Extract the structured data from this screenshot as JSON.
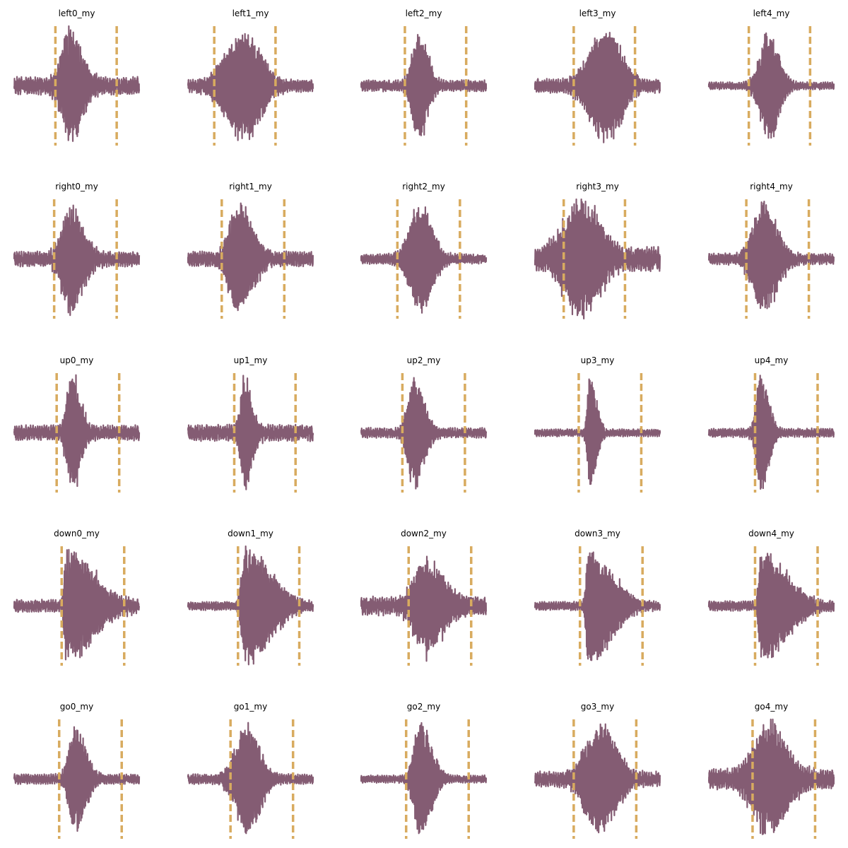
{
  "colors": {
    "waveform": "#845c73",
    "marker": "#d8ab5f",
    "background": "#ffffff"
  },
  "chart_data": {
    "type": "line",
    "grid": false,
    "axes_visible": false,
    "layout": {
      "rows": 5,
      "cols": 5
    },
    "xlim": [
      0,
      1
    ],
    "ylim": [
      -1,
      1
    ],
    "panels": [
      {
        "title": "left0_my",
        "markers": [
          0.33,
          0.82
        ],
        "envelope": {
          "peak": 0.45,
          "rise": 0.07,
          "decay": 0.09,
          "amp": 1.0,
          "noise": 0.14
        }
      },
      {
        "title": "left1_my",
        "markers": [
          0.21,
          0.7
        ],
        "envelope": {
          "peak": 0.45,
          "rise": 0.15,
          "decay": 0.13,
          "amp": 0.95,
          "noise": 0.1
        }
      },
      {
        "title": "left2_my",
        "markers": [
          0.35,
          0.84
        ],
        "envelope": {
          "peak": 0.46,
          "rise": 0.05,
          "decay": 0.07,
          "amp": 0.95,
          "noise": 0.09
        }
      },
      {
        "title": "left3_my",
        "markers": [
          0.31,
          0.8
        ],
        "envelope": {
          "peak": 0.57,
          "rise": 0.13,
          "decay": 0.12,
          "amp": 1.0,
          "noise": 0.11
        }
      },
      {
        "title": "left4_my",
        "markers": [
          0.32,
          0.81
        ],
        "envelope": {
          "peak": 0.48,
          "rise": 0.07,
          "decay": 0.08,
          "amp": 0.95,
          "noise": 0.06
        }
      },
      {
        "title": "right0_my",
        "markers": [
          0.32,
          0.82
        ],
        "envelope": {
          "peak": 0.45,
          "rise": 0.07,
          "decay": 0.1,
          "amp": 0.95,
          "noise": 0.12
        }
      },
      {
        "title": "right1_my",
        "markers": [
          0.27,
          0.77
        ],
        "envelope": {
          "peak": 0.4,
          "rise": 0.07,
          "decay": 0.11,
          "amp": 0.95,
          "noise": 0.12
        }
      },
      {
        "title": "right2_my",
        "markers": [
          0.29,
          0.79
        ],
        "envelope": {
          "peak": 0.48,
          "rise": 0.09,
          "decay": 0.09,
          "amp": 0.95,
          "noise": 0.08
        }
      },
      {
        "title": "right3_my",
        "markers": [
          0.23,
          0.72
        ],
        "envelope": {
          "peak": 0.38,
          "rise": 0.14,
          "decay": 0.14,
          "amp": 1.0,
          "noise": 0.2
        }
      },
      {
        "title": "right4_my",
        "markers": [
          0.3,
          0.8
        ],
        "envelope": {
          "peak": 0.43,
          "rise": 0.08,
          "decay": 0.11,
          "amp": 0.95,
          "noise": 0.09
        }
      },
      {
        "title": "up0_my",
        "markers": [
          0.34,
          0.84
        ],
        "envelope": {
          "peak": 0.46,
          "rise": 0.04,
          "decay": 0.07,
          "amp": 1.0,
          "noise": 0.12
        }
      },
      {
        "title": "up1_my",
        "markers": [
          0.37,
          0.86
        ],
        "envelope": {
          "peak": 0.45,
          "rise": 0.03,
          "decay": 0.06,
          "amp": 0.95,
          "noise": 0.13
        }
      },
      {
        "title": "up2_my",
        "markers": [
          0.33,
          0.83
        ],
        "envelope": {
          "peak": 0.42,
          "rise": 0.05,
          "decay": 0.08,
          "amp": 0.95,
          "noise": 0.08
        }
      },
      {
        "title": "up3_my",
        "markers": [
          0.35,
          0.85
        ],
        "envelope": {
          "peak": 0.44,
          "rise": 0.02,
          "decay": 0.05,
          "amp": 1.0,
          "noise": 0.06
        }
      },
      {
        "title": "up4_my",
        "markers": [
          0.37,
          0.87
        ],
        "envelope": {
          "peak": 0.42,
          "rise": 0.04,
          "decay": 0.06,
          "amp": 1.0,
          "noise": 0.07
        }
      },
      {
        "title": "down0_my",
        "markers": [
          0.38,
          0.88
        ],
        "envelope": {
          "peak": 0.42,
          "rise": 0.02,
          "decay": 0.22,
          "amp": 0.95,
          "noise": 0.1
        }
      },
      {
        "title": "down1_my",
        "markers": [
          0.4,
          0.89
        ],
        "envelope": {
          "peak": 0.46,
          "rise": 0.03,
          "decay": 0.2,
          "amp": 1.0,
          "noise": 0.07
        }
      },
      {
        "title": "down2_my",
        "markers": [
          0.38,
          0.88
        ],
        "envelope": {
          "peak": 0.5,
          "rise": 0.08,
          "decay": 0.15,
          "amp": 0.8,
          "noise": 0.15
        }
      },
      {
        "title": "down3_my",
        "markers": [
          0.36,
          0.86
        ],
        "envelope": {
          "peak": 0.43,
          "rise": 0.02,
          "decay": 0.18,
          "amp": 1.0,
          "noise": 0.07
        }
      },
      {
        "title": "down4_my",
        "markers": [
          0.37,
          0.87
        ],
        "envelope": {
          "peak": 0.42,
          "rise": 0.02,
          "decay": 0.2,
          "amp": 0.95,
          "noise": 0.08
        }
      },
      {
        "title": "go0_my",
        "markers": [
          0.36,
          0.86
        ],
        "envelope": {
          "peak": 0.49,
          "rise": 0.05,
          "decay": 0.08,
          "amp": 0.95,
          "noise": 0.08
        }
      },
      {
        "title": "go1_my",
        "markers": [
          0.34,
          0.84
        ],
        "envelope": {
          "peak": 0.47,
          "rise": 0.09,
          "decay": 0.1,
          "amp": 0.95,
          "noise": 0.08
        }
      },
      {
        "title": "go2_my",
        "markers": [
          0.36,
          0.86
        ],
        "envelope": {
          "peak": 0.47,
          "rise": 0.05,
          "decay": 0.09,
          "amp": 1.0,
          "noise": 0.06
        }
      },
      {
        "title": "go3_my",
        "markers": [
          0.31,
          0.81
        ],
        "envelope": {
          "peak": 0.52,
          "rise": 0.12,
          "decay": 0.13,
          "amp": 0.95,
          "noise": 0.12
        }
      },
      {
        "title": "go4_my",
        "markers": [
          0.35,
          0.85
        ],
        "envelope": {
          "peak": 0.48,
          "rise": 0.12,
          "decay": 0.14,
          "amp": 1.0,
          "noise": 0.16
        }
      }
    ]
  }
}
